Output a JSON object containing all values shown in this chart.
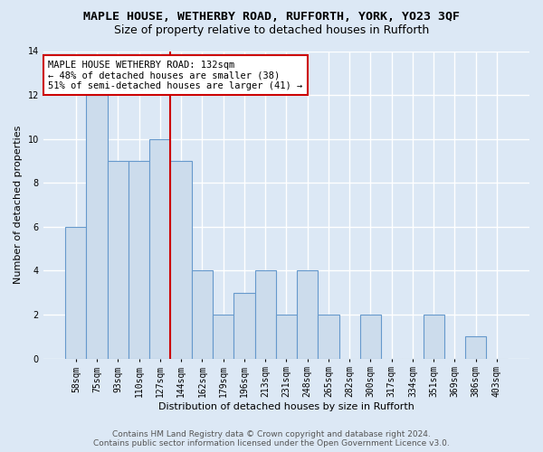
{
  "title": "MAPLE HOUSE, WETHERBY ROAD, RUFFORTH, YORK, YO23 3QF",
  "subtitle": "Size of property relative to detached houses in Rufforth",
  "xlabel": "Distribution of detached houses by size in Rufforth",
  "ylabel": "Number of detached properties",
  "categories": [
    "58sqm",
    "75sqm",
    "93sqm",
    "110sqm",
    "127sqm",
    "144sqm",
    "162sqm",
    "179sqm",
    "196sqm",
    "213sqm",
    "231sqm",
    "248sqm",
    "265sqm",
    "282sqm",
    "300sqm",
    "317sqm",
    "334sqm",
    "351sqm",
    "369sqm",
    "386sqm",
    "403sqm"
  ],
  "values": [
    6,
    12,
    9,
    9,
    10,
    9,
    4,
    2,
    3,
    4,
    2,
    4,
    2,
    0,
    2,
    0,
    0,
    2,
    0,
    1,
    0
  ],
  "bar_color": "#ccdcec",
  "bar_edge_color": "#6699cc",
  "reference_line_x": 4,
  "reference_line_color": "#cc0000",
  "annotation_text": "MAPLE HOUSE WETHERBY ROAD: 132sqm\n← 48% of detached houses are smaller (38)\n51% of semi-detached houses are larger (41) →",
  "annotation_box_color": "white",
  "annotation_box_edge_color": "#cc0000",
  "ylim": [
    0,
    14
  ],
  "yticks": [
    0,
    2,
    4,
    6,
    8,
    10,
    12,
    14
  ],
  "footnote": "Contains HM Land Registry data © Crown copyright and database right 2024.\nContains public sector information licensed under the Open Government Licence v3.0.",
  "bg_color": "#dce8f5",
  "plot_bg_color": "#dce8f5",
  "grid_color": "white",
  "title_fontsize": 9.5,
  "subtitle_fontsize": 9,
  "axis_label_fontsize": 8,
  "tick_fontsize": 7,
  "annotation_fontsize": 7.5,
  "footnote_fontsize": 6.5
}
